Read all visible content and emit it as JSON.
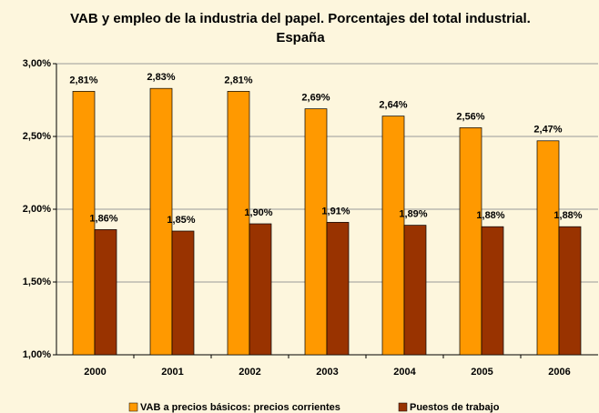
{
  "chart_data": {
    "type": "bar",
    "title": "VAB y empleo de la industria del papel. Porcentajes del total industrial. España",
    "categories": [
      "2000",
      "2001",
      "2002",
      "2003",
      "2004",
      "2005",
      "2006"
    ],
    "series": [
      {
        "name": "VAB a precios básicos: precios corrientes",
        "color": "#ff9900",
        "values": [
          2.81,
          2.83,
          2.81,
          2.69,
          2.64,
          2.56,
          2.47
        ],
        "value_labels": [
          "2,81%",
          "2,83%",
          "2,81%",
          "2,69%",
          "2,64%",
          "2,56%",
          "2,47%"
        ]
      },
      {
        "name": "Puestos de trabajo",
        "color": "#993300",
        "values": [
          1.86,
          1.85,
          1.9,
          1.91,
          1.89,
          1.88,
          1.88
        ],
        "value_labels": [
          "1,86%",
          "1,85%",
          "1,90%",
          "1,91%",
          "1,89%",
          "1,88%",
          "1,88%"
        ]
      }
    ],
    "ylim": [
      1.0,
      3.0
    ],
    "yticks": [
      {
        "value": 1.0,
        "label": "1,00%"
      },
      {
        "value": 1.5,
        "label": "1,50%"
      },
      {
        "value": 2.0,
        "label": "2,00%"
      },
      {
        "value": 2.5,
        "label": "2,50%"
      },
      {
        "value": 3.0,
        "label": "3,00%"
      }
    ],
    "grid": true,
    "legend": "bottom"
  }
}
